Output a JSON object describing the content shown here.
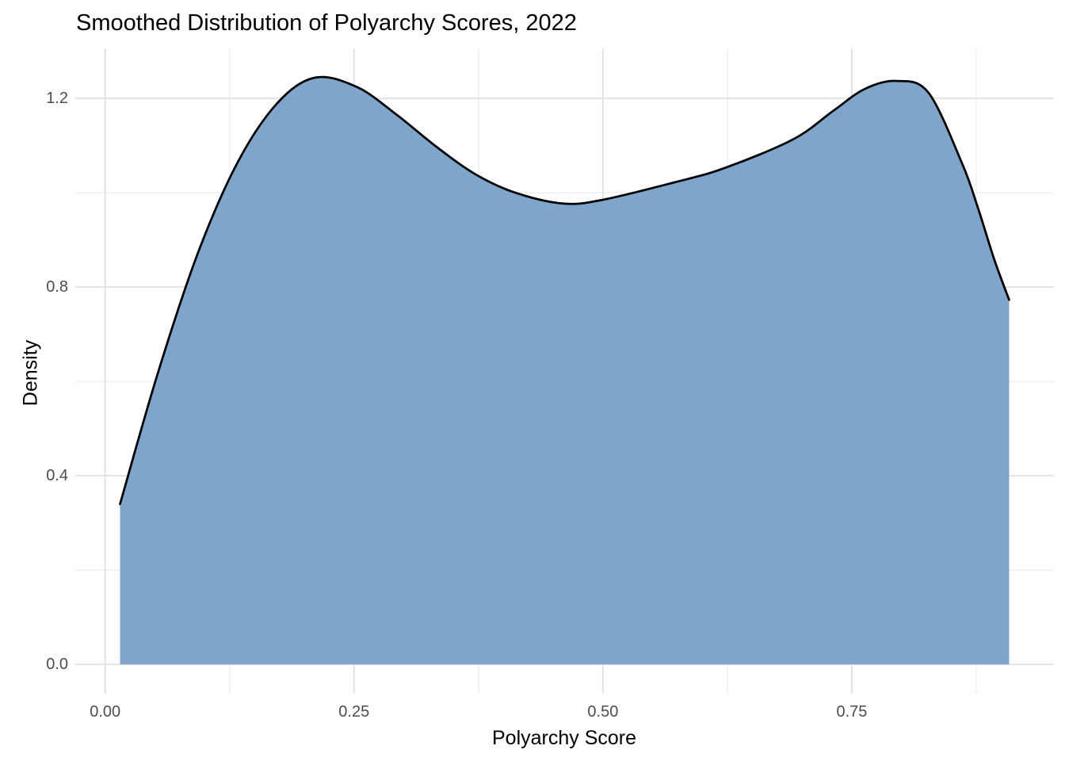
{
  "chart_data": {
    "type": "area",
    "title": "Smoothed Distribution of Polyarchy Scores, 2022",
    "xlabel": "Polyarchy Score",
    "ylabel": "Density",
    "x_ticks": [
      {
        "v": 0.0,
        "label": "0.00"
      },
      {
        "v": 0.25,
        "label": "0.25"
      },
      {
        "v": 0.5,
        "label": "0.50"
      },
      {
        "v": 0.75,
        "label": "0.75"
      }
    ],
    "x_minor_ticks": [
      0.125,
      0.375,
      0.625,
      0.875
    ],
    "y_ticks": [
      {
        "v": 0.0,
        "label": "0.0"
      },
      {
        "v": 0.4,
        "label": "0.4"
      },
      {
        "v": 0.8,
        "label": "0.8"
      },
      {
        "v": 1.2,
        "label": "1.2"
      }
    ],
    "y_minor_ticks": [
      0.2,
      0.6,
      1.0
    ],
    "xlim": [
      -0.03,
      0.953
    ],
    "ylim": [
      -0.062,
      1.306
    ],
    "grid": true,
    "legend": false,
    "baseline": 0.0,
    "series": [
      {
        "name": "polyarchy_density",
        "points": [
          [
            0.015,
            0.34
          ],
          [
            0.053,
            0.618
          ],
          [
            0.093,
            0.871
          ],
          [
            0.133,
            1.064
          ],
          [
            0.173,
            1.19
          ],
          [
            0.211,
            1.244
          ],
          [
            0.253,
            1.224
          ],
          [
            0.293,
            1.165
          ],
          [
            0.333,
            1.097
          ],
          [
            0.372,
            1.039
          ],
          [
            0.412,
            1.0
          ],
          [
            0.46,
            0.977
          ],
          [
            0.5,
            0.985
          ],
          [
            0.572,
            1.022
          ],
          [
            0.622,
            1.052
          ],
          [
            0.691,
            1.113
          ],
          [
            0.731,
            1.173
          ],
          [
            0.763,
            1.22
          ],
          [
            0.795,
            1.237
          ],
          [
            0.827,
            1.212
          ],
          [
            0.861,
            1.061
          ],
          [
            0.877,
            0.966
          ],
          [
            0.893,
            0.859
          ],
          [
            0.908,
            0.773
          ]
        ]
      }
    ],
    "colors": {
      "fill": "#80A5CB",
      "stroke": "#000000",
      "grid_major": "#E3E3E3",
      "grid_minor": "#EFEFEF",
      "tick_text": "#4D4D4D",
      "title_text": "#000000",
      "background": "#FFFFFF"
    }
  }
}
